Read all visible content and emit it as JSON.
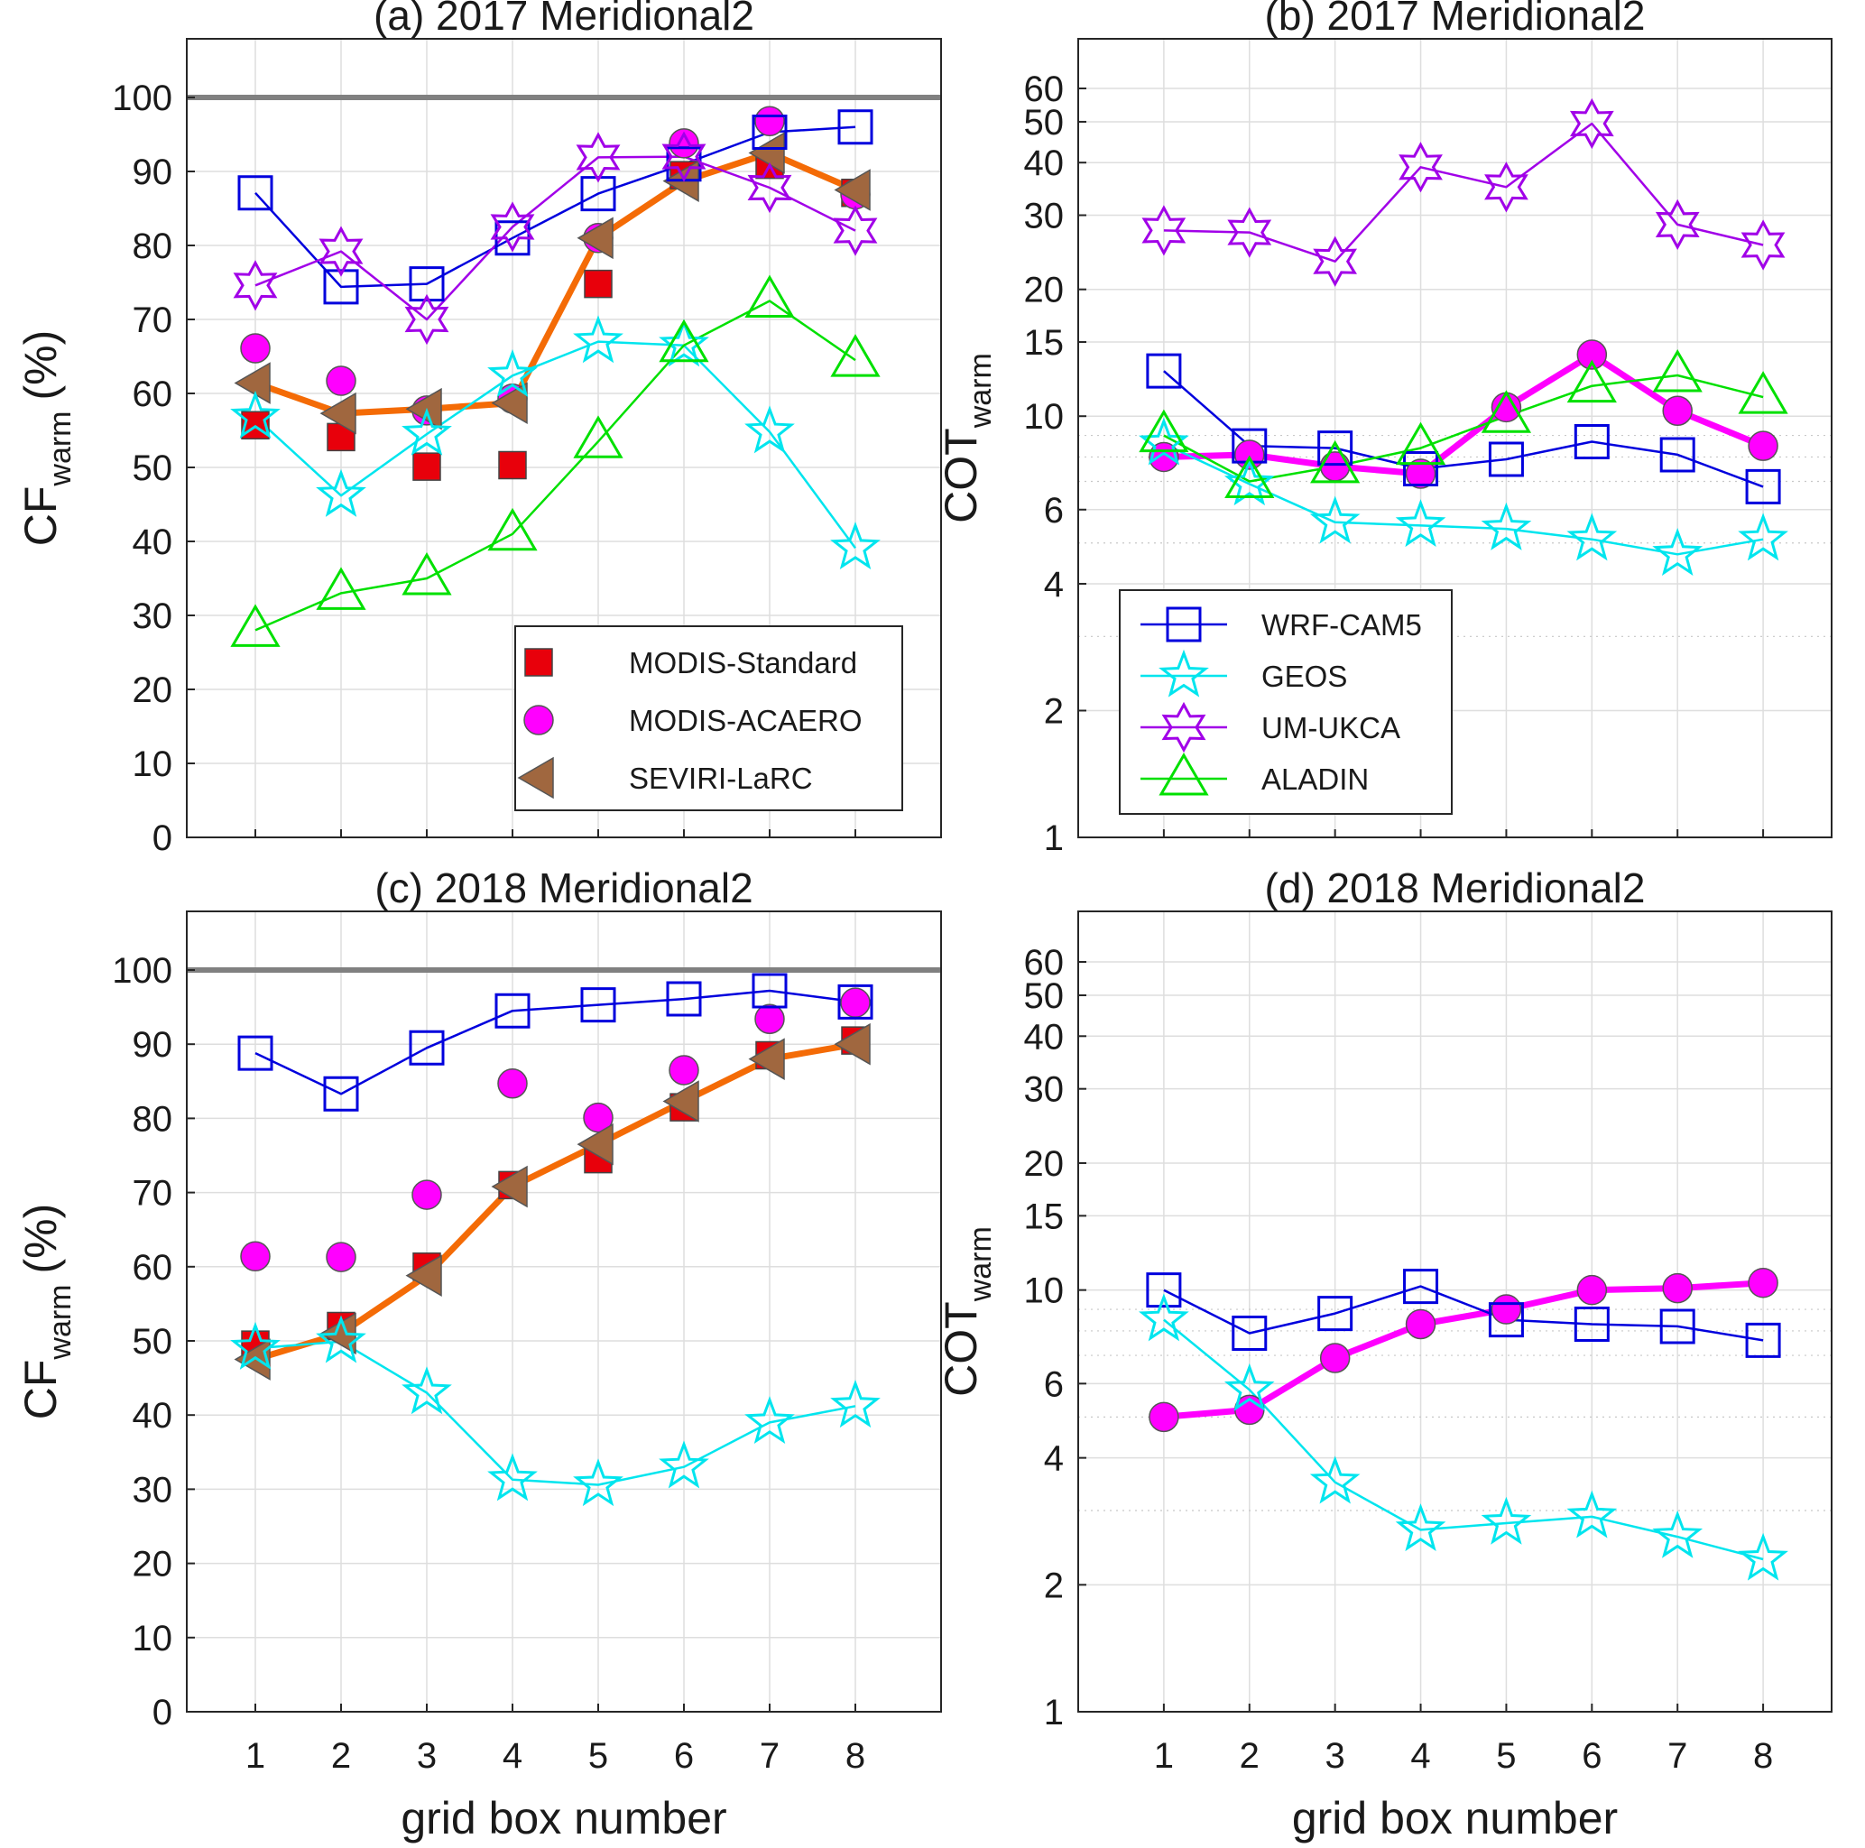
{
  "chart_data": [
    {
      "type": "line",
      "title": "(a) 2017 Meridional2",
      "xlabel": "",
      "ylabel": "CF",
      "ylabel_sub": "warm",
      "ylabel_unit": "(%)",
      "x": [
        1,
        2,
        3,
        4,
        5,
        6,
        7,
        8
      ],
      "xlim": [
        0.2,
        9.0
      ],
      "ylim": [
        0,
        105
      ],
      "yscale": "linear",
      "yticks": [
        0,
        10,
        20,
        30,
        40,
        50,
        60,
        70,
        80,
        90,
        100
      ],
      "grid": true,
      "reference_line": 100,
      "legend": {
        "position": "bottom-right",
        "entries": [
          "MODIS-Standard",
          "MODIS-ACAERO",
          "SEVIRI-LaRC"
        ]
      },
      "series": [
        {
          "name": "MODIS-Standard",
          "marker": "square",
          "line": false,
          "color": "#e8000b",
          "values": [
            55.7,
            54.1,
            50.1,
            50.3,
            74.8,
            89.5,
            90.9,
            87.1
          ]
        },
        {
          "name": "MODIS-ACAERO",
          "marker": "circle",
          "line": false,
          "color": "#ff00ff",
          "values": [
            66.1,
            61.7,
            57.7,
            59.3,
            81.0,
            93.8,
            96.8,
            86.9
          ]
        },
        {
          "name": "SEVIRI-LaRC",
          "marker": "triangle-left",
          "line": true,
          "color": "#ff6b00",
          "values": [
            61.4,
            57.3,
            57.9,
            58.7,
            81.0,
            88.7,
            92.5,
            87.5
          ]
        },
        {
          "name": "WRF-CAM5",
          "marker": "open-square",
          "line": true,
          "color": "#0000dd",
          "values": [
            87.1,
            74.4,
            74.8,
            81.0,
            87.0,
            91.0,
            95.3,
            96.0
          ]
        },
        {
          "name": "GEOS",
          "marker": "open-pentagram",
          "line": true,
          "color": "#00e5ee",
          "values": [
            56.8,
            46.2,
            54.5,
            62.4,
            67.0,
            66.5,
            54.8,
            39.1
          ]
        },
        {
          "name": "UM-UKCA",
          "marker": "open-hexagram",
          "line": true,
          "color": "#a100e8",
          "values": [
            74.6,
            79.2,
            70.0,
            82.5,
            91.9,
            92.0,
            87.8,
            82.0
          ]
        },
        {
          "name": "ALADIN",
          "marker": "open-triangle-up",
          "line": true,
          "color": "#00e000",
          "values": [
            28.0,
            33.0,
            35.0,
            41.0,
            53.5,
            66.5,
            72.5,
            64.5
          ]
        }
      ]
    },
    {
      "type": "line",
      "title": "(b) 2017 Meridional2",
      "xlabel": "",
      "ylabel": "COT",
      "ylabel_sub": "warm",
      "x": [
        1,
        2,
        3,
        4,
        5,
        6,
        7,
        8
      ],
      "xlim": [
        0.0,
        8.8
      ],
      "ylim": [
        1,
        68
      ],
      "yscale": "log",
      "yticks": [
        1,
        2,
        4,
        6,
        10,
        15,
        20,
        30,
        40,
        50,
        60
      ],
      "grid": true,
      "legend": {
        "position": "bottom-left",
        "entries": [
          "WRF-CAM5",
          "GEOS",
          "UM-UKCA",
          "ALADIN"
        ]
      },
      "series": [
        {
          "name": "MODIS-ACAERO",
          "marker": "circle",
          "line": true,
          "color": "#ff00ff",
          "values": [
            8.0,
            8.1,
            7.6,
            7.3,
            10.5,
            14.0,
            10.3,
            8.5
          ]
        },
        {
          "name": "WRF-CAM5",
          "marker": "open-square",
          "line": true,
          "color": "#0000dd",
          "values": [
            12.8,
            8.5,
            8.4,
            7.5,
            7.9,
            8.7,
            8.1,
            6.8
          ]
        },
        {
          "name": "GEOS",
          "marker": "open-pentagram",
          "line": true,
          "color": "#00e5ee",
          "values": [
            8.6,
            6.9,
            5.6,
            5.5,
            5.4,
            5.1,
            4.7,
            5.1
          ]
        },
        {
          "name": "UM-UKCA",
          "marker": "open-hexagram",
          "line": true,
          "color": "#a100e8",
          "values": [
            27.6,
            27.3,
            23.3,
            39.0,
            35.0,
            49.5,
            28.5,
            25.5
          ]
        },
        {
          "name": "ALADIN",
          "marker": "open-triangle-up",
          "line": true,
          "color": "#00e000",
          "values": [
            9.0,
            7.0,
            7.6,
            8.4,
            10.0,
            11.8,
            12.5,
            11.1
          ]
        }
      ]
    },
    {
      "type": "line",
      "title": "(c) 2018 Meridional2",
      "xlabel": "grid box number",
      "ylabel": "CF",
      "ylabel_sub": "warm",
      "ylabel_unit": "(%)",
      "x": [
        1,
        2,
        3,
        4,
        5,
        6,
        7,
        8
      ],
      "xlim": [
        0.2,
        9.0
      ],
      "ylim": [
        0,
        105
      ],
      "yscale": "linear",
      "yticks": [
        0,
        10,
        20,
        30,
        40,
        50,
        60,
        70,
        80,
        90,
        100
      ],
      "grid": true,
      "reference_line": 100,
      "series": [
        {
          "name": "MODIS-Standard",
          "marker": "square",
          "line": false,
          "color": "#e8000b",
          "values": [
            49.5,
            52.0,
            60.0,
            71.0,
            74.5,
            81.5,
            88.5,
            90.5
          ]
        },
        {
          "name": "MODIS-ACAERO",
          "marker": "circle",
          "line": false,
          "color": "#ff00ff",
          "values": [
            61.4,
            61.3,
            69.7,
            84.7,
            80.1,
            86.5,
            93.4,
            95.6
          ]
        },
        {
          "name": "SEVIRI-LaRC",
          "marker": "triangle-left",
          "line": true,
          "color": "#ff6b00",
          "values": [
            47.5,
            51.0,
            58.8,
            70.8,
            76.5,
            82.3,
            88.0,
            90.0
          ]
        },
        {
          "name": "WRF-CAM5",
          "marker": "open-square",
          "line": true,
          "color": "#0000dd",
          "values": [
            88.8,
            83.3,
            89.5,
            94.5,
            95.3,
            96.1,
            97.2,
            95.7
          ]
        },
        {
          "name": "GEOS",
          "marker": "open-pentagram",
          "line": true,
          "color": "#00e5ee",
          "values": [
            49.0,
            49.9,
            43.0,
            31.3,
            30.6,
            33.0,
            39.0,
            41.2
          ]
        }
      ]
    },
    {
      "type": "line",
      "title": "(d) 2018 Meridional2",
      "xlabel": "grid box number",
      "ylabel": "COT",
      "ylabel_sub": "warm",
      "x": [
        1,
        2,
        3,
        4,
        5,
        6,
        7,
        8
      ],
      "xlim": [
        0.0,
        8.8
      ],
      "ylim": [
        1,
        68
      ],
      "yscale": "log",
      "yticks": [
        1,
        2,
        4,
        6,
        10,
        15,
        20,
        30,
        40,
        50,
        60
      ],
      "grid": true,
      "series": [
        {
          "name": "MODIS-ACAERO",
          "marker": "circle",
          "line": true,
          "color": "#ff00ff",
          "values": [
            5.0,
            5.2,
            6.9,
            8.3,
            9.0,
            10.0,
            10.1,
            10.4
          ]
        },
        {
          "name": "WRF-CAM5",
          "marker": "open-square",
          "line": true,
          "color": "#0000dd",
          "values": [
            10.0,
            7.9,
            8.8,
            10.2,
            8.5,
            8.3,
            8.2,
            7.6
          ]
        },
        {
          "name": "GEOS",
          "marker": "open-pentagram",
          "line": true,
          "color": "#00e5ee",
          "values": [
            8.5,
            5.8,
            3.5,
            2.7,
            2.8,
            2.9,
            2.6,
            2.3
          ]
        }
      ]
    }
  ]
}
